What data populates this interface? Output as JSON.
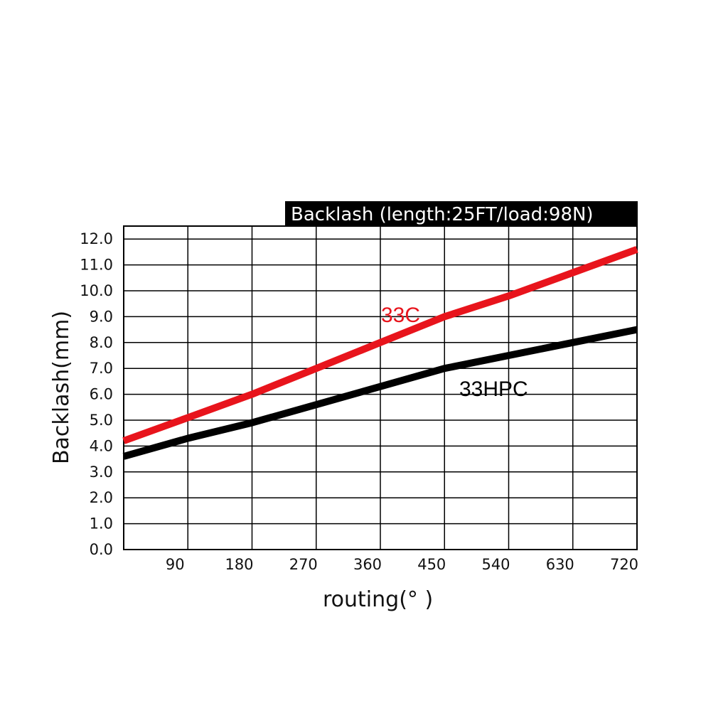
{
  "chart_data": {
    "type": "line",
    "title": "Backlash (length:25FT/load:98N)",
    "xlabel": "routing(°  )",
    "ylabel": "Backlash(mm)",
    "xlim": [
      0,
      720
    ],
    "ylim": [
      0,
      12
    ],
    "x_ticks": [
      "90",
      "180",
      "270",
      "360",
      "450",
      "540",
      "630",
      "720"
    ],
    "y_ticks": [
      "0.0",
      "1.0",
      "2.0",
      "3.0",
      "4.0",
      "5.0",
      "6.0",
      "7.0",
      "8.0",
      "9.0",
      "10.0",
      "11.0",
      "12.0"
    ],
    "grid": true,
    "series": [
      {
        "name": "33C",
        "color": "#e8141c",
        "x": [
          0,
          90,
          180,
          270,
          360,
          450,
          540,
          630,
          720
        ],
        "y": [
          4.2,
          5.1,
          6.0,
          7.0,
          8.0,
          9.0,
          9.8,
          10.7,
          11.6
        ]
      },
      {
        "name": "33HPC",
        "color": "#000000",
        "x": [
          0,
          90,
          180,
          270,
          360,
          450,
          540,
          630,
          720
        ],
        "y": [
          3.6,
          4.3,
          4.9,
          5.6,
          6.3,
          7.0,
          7.5,
          8.0,
          8.5
        ]
      }
    ]
  }
}
